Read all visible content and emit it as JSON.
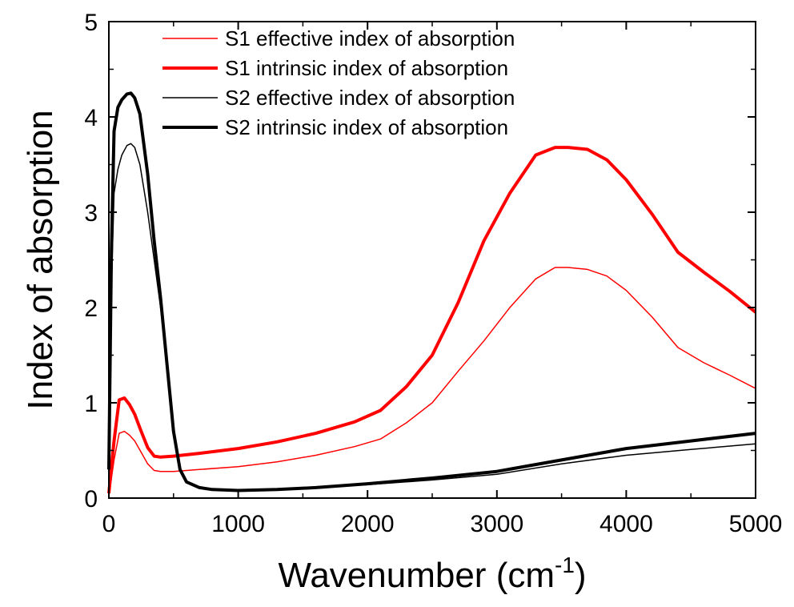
{
  "chart_data": {
    "type": "line",
    "xlabel": "Wavenumber (cm",
    "xlabel_sup": "-1",
    "xlabel_close": ")",
    "ylabel": "Index of absorption",
    "xlim": [
      0,
      5000
    ],
    "ylim": [
      0,
      5
    ],
    "xticks": [
      0,
      1000,
      2000,
      3000,
      4000,
      5000
    ],
    "yticks": [
      0,
      1,
      2,
      3,
      4,
      5
    ],
    "xtick_labels": [
      "0",
      "1000",
      "2000",
      "3000",
      "4000",
      "5000"
    ],
    "ytick_labels": [
      "0",
      "1",
      "2",
      "3",
      "4",
      "5"
    ],
    "grid": false,
    "legend_placement": "top-center",
    "series": [
      {
        "name": "S1 effective index of absorption",
        "color": "#ff0000",
        "weight": "thin",
        "x": [
          0,
          40,
          80,
          120,
          160,
          200,
          250,
          300,
          350,
          400,
          500,
          700,
          1000,
          1300,
          1600,
          1900,
          2100,
          2300,
          2500,
          2700,
          2900,
          3100,
          3300,
          3450,
          3550,
          3700,
          3850,
          4000,
          4200,
          4400,
          4600,
          4800,
          5000
        ],
        "y": [
          0.02,
          0.4,
          0.68,
          0.7,
          0.66,
          0.6,
          0.48,
          0.36,
          0.29,
          0.28,
          0.28,
          0.3,
          0.33,
          0.38,
          0.45,
          0.54,
          0.62,
          0.79,
          1.0,
          1.33,
          1.65,
          2.0,
          2.3,
          2.42,
          2.42,
          2.4,
          2.33,
          2.18,
          1.9,
          1.58,
          1.42,
          1.29,
          1.15
        ]
      },
      {
        "name": "S1 intrinsic index of absorption",
        "color": "#ff0000",
        "weight": "thick",
        "x": [
          0,
          40,
          80,
          120,
          160,
          200,
          250,
          300,
          350,
          400,
          500,
          700,
          1000,
          1300,
          1600,
          1900,
          2100,
          2300,
          2500,
          2700,
          2900,
          3100,
          3300,
          3450,
          3550,
          3700,
          3850,
          4000,
          4200,
          4400,
          4600,
          4800,
          5000
        ],
        "y": [
          0.05,
          0.6,
          1.03,
          1.05,
          0.98,
          0.88,
          0.7,
          0.53,
          0.44,
          0.43,
          0.44,
          0.47,
          0.52,
          0.59,
          0.68,
          0.8,
          0.92,
          1.17,
          1.5,
          2.05,
          2.7,
          3.2,
          3.6,
          3.68,
          3.68,
          3.66,
          3.55,
          3.34,
          2.98,
          2.58,
          2.37,
          2.17,
          1.95
        ]
      },
      {
        "name": "S2 effective index of absorption",
        "color": "#000000",
        "weight": "thin",
        "x": [
          0,
          20,
          40,
          70,
          100,
          140,
          170,
          200,
          240,
          300,
          350,
          400,
          450,
          500,
          550,
          600,
          700,
          800,
          1000,
          1300,
          1600,
          2000,
          2500,
          3000,
          3500,
          4000,
          4500,
          5000
        ],
        "y": [
          0.3,
          2.2,
          3.2,
          3.45,
          3.6,
          3.7,
          3.72,
          3.68,
          3.5,
          3.0,
          2.5,
          2.0,
          1.4,
          0.7,
          0.3,
          0.17,
          0.11,
          0.09,
          0.08,
          0.09,
          0.11,
          0.14,
          0.19,
          0.25,
          0.36,
          0.45,
          0.51,
          0.57
        ]
      },
      {
        "name": "S2 intrinsic index of absorption",
        "color": "#000000",
        "weight": "thick",
        "x": [
          0,
          20,
          40,
          70,
          100,
          140,
          170,
          200,
          240,
          300,
          350,
          400,
          450,
          500,
          550,
          600,
          700,
          800,
          1000,
          1300,
          1600,
          2000,
          2500,
          3000,
          3500,
          4000,
          4500,
          5000
        ],
        "y": [
          0.3,
          2.6,
          3.85,
          4.1,
          4.18,
          4.24,
          4.25,
          4.2,
          4.03,
          3.4,
          2.7,
          2.1,
          1.4,
          0.7,
          0.3,
          0.17,
          0.11,
          0.09,
          0.08,
          0.09,
          0.11,
          0.15,
          0.21,
          0.28,
          0.4,
          0.52,
          0.6,
          0.68
        ]
      }
    ]
  }
}
